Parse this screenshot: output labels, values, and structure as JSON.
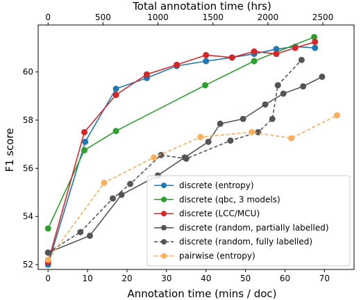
{
  "chart_data": {
    "type": "line",
    "xlabel": "Annotation time (mins / doc)",
    "ylabel": "F1 score",
    "top_xlabel": "Total annotation time (hrs)",
    "xlim": [
      -2.5,
      77.5
    ],
    "ylim": [
      51.8,
      61.95
    ],
    "top_xlim": [
      -90,
      2784
    ],
    "x_ticks": [
      0,
      10,
      20,
      30,
      40,
      50,
      60,
      70
    ],
    "y_ticks": [
      52,
      54,
      56,
      58,
      60
    ],
    "top_x_ticks": [
      0,
      500,
      1000,
      1500,
      2000,
      2500
    ],
    "legend_location": "lower-right",
    "grid": false,
    "series": [
      {
        "name": "discrete (entropy)",
        "color": "#1f77b4",
        "linestyle": "solid",
        "x": [
          0,
          9.4,
          17.2,
          25,
          32.6,
          40,
          46.6,
          52.2,
          57.8,
          62.6,
          67.6
        ],
        "y": [
          52.0,
          57.1,
          59.3,
          59.75,
          60.25,
          60.45,
          60.6,
          60.75,
          60.95,
          61.05,
          61.0
        ]
      },
      {
        "name": "discrete (qbc, 3 models)",
        "color": "#2ca02c",
        "linestyle": "solid",
        "x": [
          0,
          9.2,
          17.2,
          39.8,
          52.2,
          67.4
        ],
        "y": [
          53.5,
          56.75,
          57.55,
          59.45,
          60.45,
          61.45
        ]
      },
      {
        "name": "discrete (LCC/MCU)",
        "color": "#d62728",
        "linestyle": "solid",
        "x": [
          0,
          9.2,
          17.2,
          25,
          32.6,
          40,
          46.6,
          52.2,
          57.8,
          62.6,
          67.6
        ],
        "y": [
          52.1,
          57.5,
          59.05,
          59.9,
          60.3,
          60.7,
          60.6,
          60.85,
          60.75,
          61.0,
          61.25
        ]
      },
      {
        "name": "discrete (random, partially labelled)",
        "color": "#555555",
        "linestyle": "solid",
        "x": [
          0,
          10.6,
          18.6,
          27.8,
          34.6,
          40.6,
          43.6,
          49.4,
          55,
          59.6,
          64.6,
          69.4
        ],
        "y": [
          52.5,
          53.2,
          54.9,
          55.7,
          56.45,
          57.1,
          57.85,
          58.05,
          58.65,
          59.1,
          59.4,
          59.8
        ]
      },
      {
        "name": "discrete (random, fully labelled)",
        "color": "#555555",
        "linestyle": "dashed",
        "x": [
          0,
          8.2,
          16.4,
          20.8,
          28.6,
          35,
          46.2,
          53.2,
          56.8,
          58.2,
          64.2
        ],
        "y": [
          52.5,
          53.35,
          54.75,
          55.35,
          56.55,
          56.4,
          57.15,
          57.5,
          58.05,
          59.45,
          60.5
        ]
      },
      {
        "name": "pairwise (entropy)",
        "color": "#ffae5b",
        "linestyle": "dashed",
        "x": [
          0,
          14.2,
          26.8,
          38.6,
          51.6,
          61.6,
          73.2
        ],
        "y": [
          52.2,
          55.4,
          56.45,
          57.3,
          57.5,
          57.25,
          58.2
        ]
      }
    ]
  }
}
